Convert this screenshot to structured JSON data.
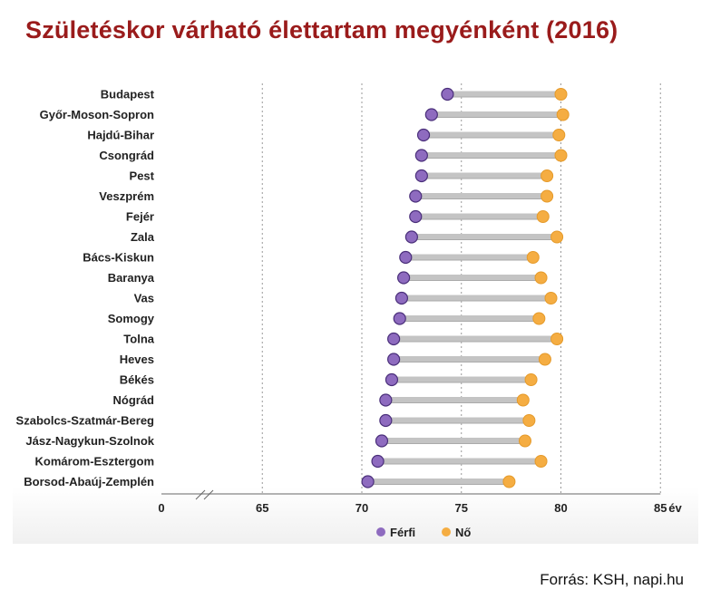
{
  "title": "Születéskor várható élettartam megyénként (2016)",
  "source": "Forrás: KSH, napi.hu",
  "chart_data": {
    "type": "dumbbell",
    "title": "Születéskor várható élettartam megyénként (2016)",
    "xlabel": "év",
    "xlim": [
      65,
      85
    ],
    "axis_break": true,
    "x_ticks": [
      "0",
      "65",
      "70",
      "75",
      "80",
      "85"
    ],
    "x_unit": "év",
    "legend": [
      {
        "name": "Férfi",
        "color": "#8e6bbf"
      },
      {
        "name": "Nő",
        "color": "#f5ad42"
      }
    ],
    "legend_position": "bottom",
    "categories": [
      "Budapest",
      "Győr-Moson-Sopron",
      "Hajdú-Bihar",
      "Csongrád",
      "Pest",
      "Veszprém",
      "Fejér",
      "Zala",
      "Bács-Kiskun",
      "Baranya",
      "Vas",
      "Somogy",
      "Tolna",
      "Heves",
      "Békés",
      "Nógrád",
      "Szabolcs-Szatmár-Bereg",
      "Jász-Nagykun-Szolnok",
      "Komárom-Esztergom",
      "Borsod-Abaúj-Zemplén"
    ],
    "series": [
      {
        "name": "Férfi",
        "values": [
          74.3,
          73.5,
          73.1,
          73.0,
          73.0,
          72.7,
          72.7,
          72.5,
          72.2,
          72.1,
          72.0,
          71.9,
          71.6,
          71.6,
          71.5,
          71.2,
          71.2,
          71.0,
          70.8,
          70.3
        ]
      },
      {
        "name": "Nő",
        "values": [
          80.0,
          80.1,
          79.9,
          80.0,
          79.3,
          79.3,
          79.1,
          79.8,
          78.6,
          79.0,
          79.5,
          78.9,
          79.8,
          79.2,
          78.5,
          78.1,
          78.4,
          78.2,
          79.0,
          77.4
        ]
      }
    ]
  }
}
